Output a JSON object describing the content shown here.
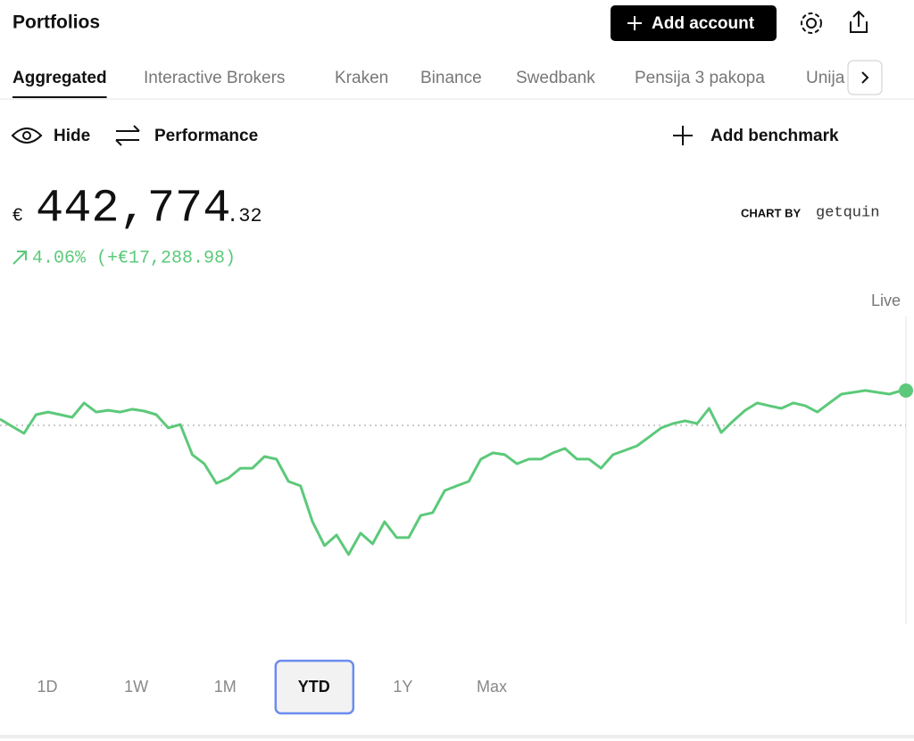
{
  "header": {
    "title": "Portfolios",
    "add_button": "Add account"
  },
  "tabs": {
    "items": [
      "Aggregated",
      "Interactive Brokers",
      "Kraken",
      "Binance",
      "Swedbank",
      "Pensija 3 pakopa",
      "Unija"
    ],
    "active": 0
  },
  "toolbar": {
    "hide": "Hide",
    "performance": "Performance",
    "benchmark": "Add benchmark"
  },
  "summary": {
    "currency": "€",
    "integer": "442,774",
    "decimal": ".32",
    "change": "4.06% (+€17,288.98)"
  },
  "branding": {
    "label": "CHART BY",
    "name": "getquin"
  },
  "chart_data": {
    "type": "line",
    "live_label": "Live",
    "color": "#5cc97a",
    "ylim": [
      360000,
      450000
    ],
    "baseline": 425485,
    "values": [
      428600,
      425000,
      421500,
      430800,
      432100,
      430800,
      429500,
      436600,
      432100,
      433000,
      432100,
      433500,
      432600,
      430800,
      424200,
      425900,
      410900,
      406400,
      396700,
      399300,
      404200,
      404200,
      410000,
      408700,
      397600,
      395400,
      377600,
      365700,
      371000,
      361300,
      371900,
      366600,
      377600,
      369700,
      369700,
      380700,
      382100,
      393100,
      395400,
      397600,
      408700,
      411800,
      410900,
      406400,
      408700,
      408700,
      411800,
      414000,
      408700,
      408700,
      404200,
      410900,
      413100,
      415300,
      419700,
      424200,
      426400,
      427700,
      426400,
      433900,
      421900,
      427700,
      433000,
      436600,
      435200,
      433900,
      436600,
      435200,
      432100,
      436600,
      441000,
      441900,
      442800,
      441900,
      441000,
      442774
    ]
  },
  "ranges": {
    "items": [
      "1D",
      "1W",
      "1M",
      "YTD",
      "1Y",
      "Max"
    ],
    "selected": 3
  }
}
